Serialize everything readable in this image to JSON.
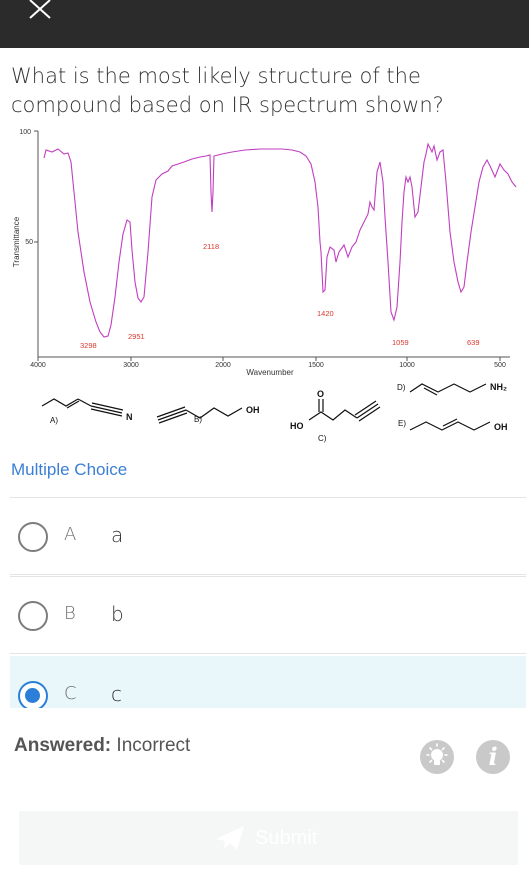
{
  "header": {
    "close_icon": "close-icon"
  },
  "question": {
    "text": "What is the most likely structure of the compound based on IR spectrum shown?"
  },
  "spectrum": {
    "ylabel": "Transmittance",
    "xlabel": "Wavenumber",
    "y_ticks": [
      "100",
      "50"
    ],
    "x_ticks": [
      "4000",
      "3000",
      "2000",
      "1500",
      "1000",
      "500"
    ],
    "peaks": [
      "3298",
      "2951",
      "2118",
      "1420",
      "1059",
      "639"
    ],
    "line_color": "#c13ec1",
    "peak_label_color": "#d9382e"
  },
  "structures": {
    "a": {
      "label": "A)",
      "atom": "N"
    },
    "b": {
      "label": "B)",
      "group": "OH"
    },
    "c": {
      "label": "C)",
      "ho": "HO",
      "o": "O"
    },
    "d": {
      "label": "D)",
      "group": "NH₂"
    },
    "e": {
      "label": "E)",
      "group": "OH"
    }
  },
  "multiple_choice": {
    "title": "Multiple Choice",
    "options": [
      {
        "letter": "A",
        "text": "a",
        "selected": false
      },
      {
        "letter": "B",
        "text": "b",
        "selected": false
      },
      {
        "letter": "C",
        "text": "c",
        "selected": true
      }
    ]
  },
  "status": {
    "answered_label": "Answered:",
    "answered_value": "Incorrect"
  },
  "actions": {
    "hint_icon": "lightbulb-icon",
    "info_icon": "info-icon",
    "info_glyph": "i",
    "submit_label": "Submit",
    "submit_icon": "send-icon"
  },
  "colors": {
    "accent": "#2c7fd9",
    "selected_bg": "#e9f7fb",
    "topbar": "#2b2b2b"
  }
}
